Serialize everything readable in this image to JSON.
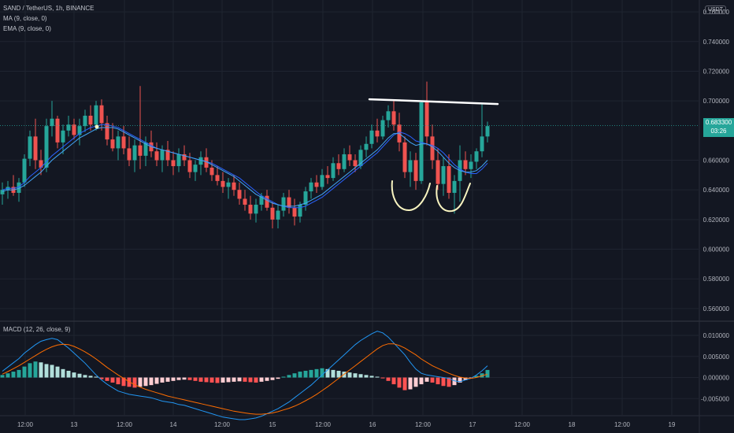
{
  "header": {
    "symbol_line": "SAND / TetherUS, 1h, BINANCE",
    "ma_line": "MA (9, close, 0)",
    "ema_line": "EMA (9, close, 0)",
    "macd_line": "MACD (12, 26, close, 9)",
    "currency_badge": "USDT"
  },
  "last_price": {
    "value": "0.683300",
    "countdown": "03:26"
  },
  "colors": {
    "up": "#26a69a",
    "down": "#ef5350",
    "ma": "#2962ff",
    "ema": "#42a5f5",
    "macd": "#2196f3",
    "signal": "#ff6d00",
    "background": "#131722"
  },
  "chart_data": [
    {
      "type": "candlestick",
      "title": "SAND / TetherUS, 1h, BINANCE",
      "x_tick_labels": [
        "12:00",
        "13",
        "12:00",
        "14",
        "12:00",
        "15",
        "12:00",
        "16",
        "12:00",
        "17",
        "12:00",
        "18",
        "12:00",
        "19"
      ],
      "y_tick_labels": [
        "0.760000",
        "0.740000",
        "0.720000",
        "0.700000",
        "0.660000",
        "0.640000",
        "0.620000",
        "0.600000",
        "0.580000",
        "0.560000"
      ],
      "ylim": [
        0.552,
        0.768
      ],
      "legend_position": "top-left",
      "grid": true,
      "candles": [
        [
          0.637,
          0.645,
          0.63,
          0.64
        ],
        [
          0.64,
          0.646,
          0.634,
          0.642
        ],
        [
          0.642,
          0.65,
          0.636,
          0.638
        ],
        [
          0.638,
          0.648,
          0.632,
          0.645
        ],
        [
          0.645,
          0.664,
          0.642,
          0.661
        ],
        [
          0.661,
          0.68,
          0.656,
          0.676
        ],
        [
          0.676,
          0.688,
          0.654,
          0.66
        ],
        [
          0.66,
          0.667,
          0.65,
          0.655
        ],
        [
          0.655,
          0.688,
          0.652,
          0.683
        ],
        [
          0.683,
          0.7,
          0.676,
          0.688
        ],
        [
          0.688,
          0.69,
          0.668,
          0.672
        ],
        [
          0.672,
          0.684,
          0.664,
          0.68
        ],
        [
          0.68,
          0.69,
          0.676,
          0.684
        ],
        [
          0.684,
          0.688,
          0.674,
          0.677
        ],
        [
          0.677,
          0.688,
          0.67,
          0.683
        ],
        [
          0.683,
          0.694,
          0.679,
          0.69
        ],
        [
          0.69,
          0.697,
          0.68,
          0.684
        ],
        [
          0.684,
          0.7,
          0.68,
          0.697
        ],
        [
          0.697,
          0.701,
          0.68,
          0.685
        ],
        [
          0.685,
          0.69,
          0.67,
          0.674
        ],
        [
          0.674,
          0.685,
          0.666,
          0.668
        ],
        [
          0.668,
          0.68,
          0.66,
          0.676
        ],
        [
          0.676,
          0.683,
          0.664,
          0.668
        ],
        [
          0.668,
          0.676,
          0.656,
          0.66
        ],
        [
          0.66,
          0.674,
          0.652,
          0.67
        ],
        [
          0.67,
          0.71,
          0.654,
          0.663
        ],
        [
          0.663,
          0.676,
          0.656,
          0.672
        ],
        [
          0.672,
          0.68,
          0.662,
          0.666
        ],
        [
          0.666,
          0.672,
          0.656,
          0.66
        ],
        [
          0.66,
          0.67,
          0.652,
          0.667
        ],
        [
          0.667,
          0.673,
          0.656,
          0.66
        ],
        [
          0.66,
          0.666,
          0.65,
          0.656
        ],
        [
          0.656,
          0.668,
          0.652,
          0.664
        ],
        [
          0.664,
          0.67,
          0.656,
          0.66
        ],
        [
          0.66,
          0.665,
          0.648,
          0.652
        ],
        [
          0.652,
          0.66,
          0.646,
          0.657
        ],
        [
          0.657,
          0.666,
          0.65,
          0.662
        ],
        [
          0.662,
          0.668,
          0.652,
          0.655
        ],
        [
          0.655,
          0.66,
          0.646,
          0.65
        ],
        [
          0.65,
          0.656,
          0.643,
          0.646
        ],
        [
          0.646,
          0.652,
          0.638,
          0.642
        ],
        [
          0.642,
          0.648,
          0.634,
          0.645
        ],
        [
          0.645,
          0.65,
          0.636,
          0.64
        ],
        [
          0.64,
          0.645,
          0.63,
          0.634
        ],
        [
          0.634,
          0.64,
          0.626,
          0.63
        ],
        [
          0.63,
          0.636,
          0.62,
          0.624
        ],
        [
          0.624,
          0.634,
          0.618,
          0.63
        ],
        [
          0.63,
          0.638,
          0.626,
          0.636
        ],
        [
          0.636,
          0.64,
          0.626,
          0.628
        ],
        [
          0.628,
          0.632,
          0.614,
          0.62
        ],
        [
          0.62,
          0.63,
          0.614,
          0.626
        ],
        [
          0.626,
          0.638,
          0.622,
          0.635
        ],
        [
          0.635,
          0.64,
          0.624,
          0.628
        ],
        [
          0.628,
          0.634,
          0.616,
          0.622
        ],
        [
          0.622,
          0.632,
          0.618,
          0.63
        ],
        [
          0.63,
          0.642,
          0.626,
          0.639
        ],
        [
          0.639,
          0.648,
          0.634,
          0.645
        ],
        [
          0.645,
          0.65,
          0.638,
          0.642
        ],
        [
          0.642,
          0.654,
          0.64,
          0.65
        ],
        [
          0.65,
          0.656,
          0.644,
          0.648
        ],
        [
          0.648,
          0.662,
          0.646,
          0.658
        ],
        [
          0.658,
          0.664,
          0.65,
          0.654
        ],
        [
          0.654,
          0.668,
          0.652,
          0.664
        ],
        [
          0.664,
          0.67,
          0.656,
          0.66
        ],
        [
          0.66,
          0.664,
          0.652,
          0.656
        ],
        [
          0.656,
          0.67,
          0.654,
          0.667
        ],
        [
          0.667,
          0.676,
          0.662,
          0.671
        ],
        [
          0.671,
          0.684,
          0.668,
          0.68
        ],
        [
          0.68,
          0.688,
          0.672,
          0.676
        ],
        [
          0.676,
          0.69,
          0.674,
          0.687
        ],
        [
          0.687,
          0.697,
          0.682,
          0.693
        ],
        [
          0.693,
          0.7,
          0.68,
          0.684
        ],
        [
          0.684,
          0.692,
          0.666,
          0.672
        ],
        [
          0.672,
          0.676,
          0.648,
          0.652
        ],
        [
          0.652,
          0.666,
          0.642,
          0.66
        ],
        [
          0.66,
          0.665,
          0.64,
          0.646
        ],
        [
          0.646,
          0.7,
          0.644,
          0.699
        ],
        [
          0.699,
          0.713,
          0.67,
          0.676
        ],
        [
          0.676,
          0.684,
          0.654,
          0.66
        ],
        [
          0.66,
          0.668,
          0.64,
          0.644
        ],
        [
          0.644,
          0.662,
          0.636,
          0.656
        ],
        [
          0.656,
          0.664,
          0.634,
          0.638
        ],
        [
          0.638,
          0.65,
          0.624,
          0.646
        ],
        [
          0.646,
          0.67,
          0.632,
          0.66
        ],
        [
          0.66,
          0.666,
          0.65,
          0.654
        ],
        [
          0.654,
          0.664,
          0.648,
          0.659
        ],
        [
          0.659,
          0.668,
          0.654,
          0.666
        ],
        [
          0.666,
          0.698,
          0.662,
          0.676
        ],
        [
          0.676,
          0.686,
          0.672,
          0.683
        ]
      ],
      "series": [
        {
          "name": "MA (9, close, 0)",
          "values": [
            0.64,
            0.641,
            0.641,
            0.642,
            0.645,
            0.649,
            0.652,
            0.655,
            0.659,
            0.663,
            0.666,
            0.669,
            0.672,
            0.675,
            0.678,
            0.68,
            0.682,
            0.683,
            0.684,
            0.684,
            0.683,
            0.682,
            0.68,
            0.678,
            0.676,
            0.674,
            0.672,
            0.67,
            0.668,
            0.667,
            0.666,
            0.665,
            0.664,
            0.663,
            0.662,
            0.661,
            0.66,
            0.659,
            0.658,
            0.656,
            0.654,
            0.652,
            0.65,
            0.648,
            0.645,
            0.642,
            0.639,
            0.636,
            0.634,
            0.632,
            0.63,
            0.629,
            0.628,
            0.628,
            0.628,
            0.629,
            0.631,
            0.633,
            0.635,
            0.638,
            0.641,
            0.644,
            0.647,
            0.65,
            0.653,
            0.656,
            0.659,
            0.662,
            0.665,
            0.669,
            0.673,
            0.677,
            0.679,
            0.678,
            0.676,
            0.673,
            0.672,
            0.671,
            0.67,
            0.668,
            0.665,
            0.661,
            0.657,
            0.654,
            0.652,
            0.651,
            0.651,
            0.654,
            0.658
          ]
        },
        {
          "name": "EMA (9, close, 0)",
          "values": [
            0.639,
            0.64,
            0.64,
            0.641,
            0.643,
            0.646,
            0.649,
            0.652,
            0.656,
            0.66,
            0.663,
            0.666,
            0.669,
            0.672,
            0.675,
            0.677,
            0.679,
            0.681,
            0.682,
            0.682,
            0.682,
            0.681,
            0.679,
            0.677,
            0.675,
            0.673,
            0.671,
            0.669,
            0.668,
            0.667,
            0.666,
            0.665,
            0.664,
            0.663,
            0.662,
            0.661,
            0.66,
            0.659,
            0.657,
            0.655,
            0.653,
            0.651,
            0.649,
            0.646,
            0.643,
            0.64,
            0.637,
            0.635,
            0.633,
            0.631,
            0.63,
            0.629,
            0.629,
            0.629,
            0.63,
            0.631,
            0.633,
            0.635,
            0.637,
            0.64,
            0.643,
            0.646,
            0.649,
            0.652,
            0.655,
            0.658,
            0.661,
            0.664,
            0.667,
            0.671,
            0.675,
            0.678,
            0.678,
            0.675,
            0.672,
            0.67,
            0.671,
            0.671,
            0.669,
            0.666,
            0.662,
            0.658,
            0.655,
            0.653,
            0.652,
            0.652,
            0.653,
            0.656,
            0.66
          ]
        }
      ],
      "annotations": [
        {
          "type": "horizontal-line",
          "value": 0.6995,
          "label": ""
        },
        {
          "type": "double-bottom-marks",
          "label": ""
        }
      ]
    },
    {
      "type": "bar",
      "title": "MACD (12, 26, close, 9)",
      "y_tick_labels": [
        "0.010000",
        "0.005000",
        "0.000000",
        "-0.005000"
      ],
      "ylim": [
        -0.0085,
        0.013
      ],
      "histogram": [
        0.0006,
        0.001,
        0.0014,
        0.0018,
        0.0026,
        0.0034,
        0.0038,
        0.0036,
        0.0032,
        0.003,
        0.0026,
        0.002,
        0.0016,
        0.0012,
        0.0009,
        0.0006,
        0.0004,
        0.0002,
        -0.0004,
        -0.0008,
        -0.0012,
        -0.0016,
        -0.002,
        -0.0022,
        -0.0024,
        -0.0022,
        -0.002,
        -0.0018,
        -0.0015,
        -0.0012,
        -0.001,
        -0.0008,
        -0.0006,
        -0.0005,
        -0.0006,
        -0.0008,
        -0.001,
        -0.0011,
        -0.0012,
        -0.0013,
        -0.0012,
        -0.0011,
        -0.001,
        -0.0009,
        -0.001,
        -0.0011,
        -0.0012,
        -0.001,
        -0.0008,
        -0.0006,
        -0.0003,
        0.0002,
        0.0006,
        0.001,
        0.0014,
        0.0016,
        0.0018,
        0.002,
        0.0022,
        0.002,
        0.0018,
        0.0016,
        0.0014,
        0.0012,
        0.001,
        0.0008,
        0.0006,
        0.0004,
        0.0002,
        -0.0002,
        -0.0008,
        -0.0016,
        -0.0024,
        -0.003,
        -0.0028,
        -0.0022,
        -0.0016,
        -0.001,
        -0.0012,
        -0.0016,
        -0.002,
        -0.0022,
        -0.0018,
        -0.0012,
        -0.0006,
        -0.0002,
        0.0004,
        0.001,
        0.0018
      ],
      "series": [
        {
          "name": "MACD",
          "values": [
            0.0015,
            0.0025,
            0.0035,
            0.0045,
            0.0058,
            0.0068,
            0.0078,
            0.0086,
            0.009,
            0.0093,
            0.009,
            0.008,
            0.007,
            0.0058,
            0.0046,
            0.0034,
            0.002,
            0.0006,
            -0.0006,
            -0.0016,
            -0.0024,
            -0.0032,
            -0.0036,
            -0.004,
            -0.0042,
            -0.0044,
            -0.0046,
            -0.0048,
            -0.0052,
            -0.0056,
            -0.0058,
            -0.006,
            -0.0064,
            -0.0066,
            -0.007,
            -0.0074,
            -0.0078,
            -0.0082,
            -0.0086,
            -0.009,
            -0.0094,
            -0.0096,
            -0.0098,
            -0.01,
            -0.01,
            -0.0098,
            -0.0096,
            -0.0092,
            -0.0086,
            -0.008,
            -0.0074,
            -0.0066,
            -0.0058,
            -0.0048,
            -0.0038,
            -0.0028,
            -0.0018,
            -0.0006,
            0.0006,
            0.0018,
            0.003,
            0.0042,
            0.0054,
            0.0066,
            0.0078,
            0.0088,
            0.0096,
            0.0104,
            0.011,
            0.0106,
            0.0096,
            0.0082,
            0.0068,
            0.0054,
            0.0036,
            0.002,
            0.001,
            0.0006,
            0.0004,
            0.0002,
            0.0,
            -0.0002,
            -0.0008,
            -0.001,
            -0.0006,
            -0.0002,
            0.0006,
            0.0016,
            0.0028
          ]
        },
        {
          "name": "Signal",
          "values": [
            0.0008,
            0.0014,
            0.0021,
            0.0028,
            0.0036,
            0.0044,
            0.0052,
            0.006,
            0.0067,
            0.0073,
            0.0077,
            0.0079,
            0.0078,
            0.0074,
            0.0068,
            0.0061,
            0.0053,
            0.0044,
            0.0034,
            0.0024,
            0.0015,
            0.0006,
            -0.0002,
            -0.001,
            -0.0017,
            -0.0023,
            -0.0028,
            -0.0032,
            -0.0036,
            -0.004,
            -0.0044,
            -0.0047,
            -0.005,
            -0.0053,
            -0.0056,
            -0.0059,
            -0.0062,
            -0.0065,
            -0.0068,
            -0.0071,
            -0.0074,
            -0.0077,
            -0.008,
            -0.0082,
            -0.0084,
            -0.0086,
            -0.0087,
            -0.0087,
            -0.0086,
            -0.0084,
            -0.0081,
            -0.0077,
            -0.0073,
            -0.0068,
            -0.0062,
            -0.0055,
            -0.0048,
            -0.004,
            -0.0031,
            -0.0022,
            -0.0012,
            -0.0002,
            0.0008,
            0.0018,
            0.0028,
            0.0038,
            0.0048,
            0.0058,
            0.0068,
            0.0076,
            0.008,
            0.008,
            0.0076,
            0.007,
            0.0062,
            0.0054,
            0.0044,
            0.0036,
            0.0028,
            0.0022,
            0.0016,
            0.001,
            0.0005,
            0.0001,
            -0.0001,
            -0.0002,
            0.0,
            0.0004,
            0.0008
          ]
        }
      ]
    }
  ]
}
